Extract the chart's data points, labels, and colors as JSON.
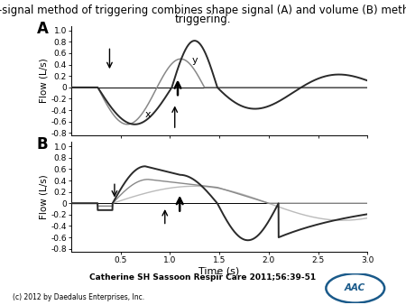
{
  "title_line1": "Shape-signal method of triggering combines shape signal (A) and volume (B) methods of",
  "title_line2": "triggering.",
  "title_fontsize": 8.5,
  "subplot_A_label": "A",
  "subplot_B_label": "B",
  "xlabel": "Time (s)",
  "ylabel": "Flow (L/s)",
  "xlim": [
    0.0,
    3.0
  ],
  "ylim": [
    -0.85,
    1.05
  ],
  "xticks": [
    0.5,
    1.0,
    1.5,
    2.0,
    2.5,
    3.0
  ],
  "yticks": [
    -0.8,
    -0.6,
    -0.4,
    -0.2,
    0.0,
    0.2,
    0.4,
    0.6,
    0.8,
    1.0
  ],
  "ytick_labels": [
    "-0.8",
    "-0.6",
    "-0.4",
    "-0.2",
    "0",
    "0.2",
    "0.4",
    "0.6",
    "0.8",
    "1.0"
  ],
  "citation": "Catherine SH Sassoon Respir Care 2011;56:39-51",
  "copyright": "(c) 2012 by Daedalus Enterprises, Inc.",
  "bg_color": "#ffffff",
  "line_color_dark": "#2a2a2a",
  "line_color_gray": "#888888",
  "line_color_lgray": "#bbbbbb"
}
